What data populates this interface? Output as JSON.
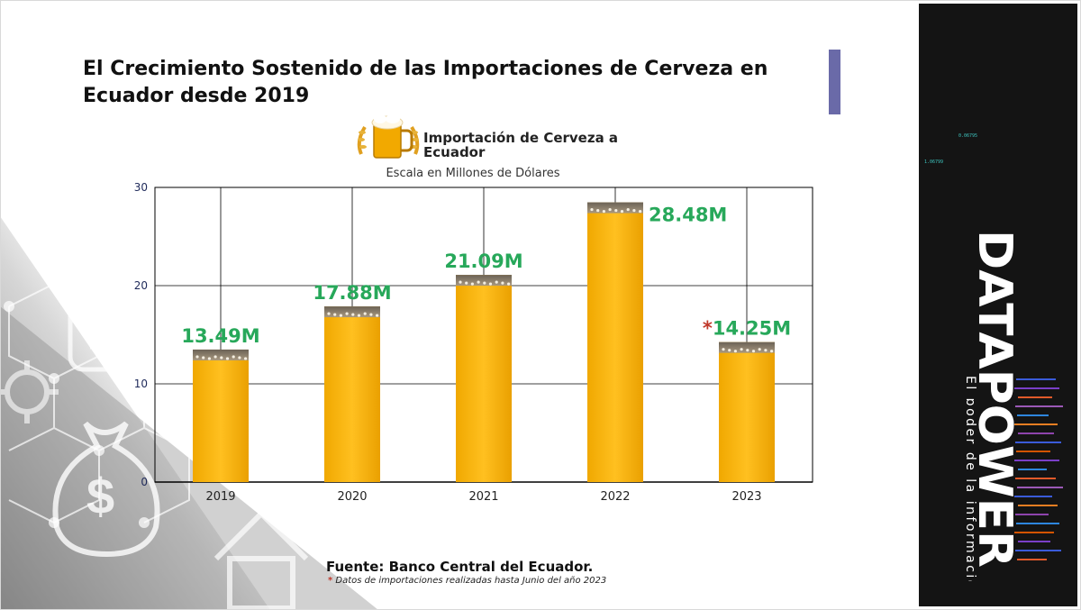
{
  "slide": {
    "title": "El Crecimiento Sostenido de las Importaciones de Cerveza en Ecuador desde 2019",
    "source": "Fuente: Banco Central del Ecuador.",
    "footnote_mark": "*",
    "footnote": "Datos de importaciones realizadas hasta Junio del año 2023"
  },
  "chart_data": {
    "type": "bar",
    "title": "Importación de Cerveza a Ecuador",
    "subtitle": "Escala en Millones de Dólares",
    "categories": [
      "2019",
      "2020",
      "2021",
      "2022",
      "2023"
    ],
    "values": [
      13.49,
      17.88,
      21.09,
      28.48,
      14.25
    ],
    "data_labels": [
      "13.49M",
      "17.88M",
      "21.09M",
      "28.48M",
      "14.25M"
    ],
    "label_marks": [
      "",
      "",
      "",
      "",
      "*"
    ],
    "xlabel": "",
    "ylabel": "",
    "ylim": [
      0,
      30
    ],
    "yticks": [
      0,
      10,
      20,
      30
    ],
    "grid": true,
    "legend": "none"
  },
  "brand": {
    "name": "DATAPOWER",
    "tagline": "El poder de la información",
    "tiny_numbers": [
      "0.06795",
      "1.06799"
    ]
  },
  "colors": {
    "accent_bar": "#6a6aa8",
    "data_label": "#27a85a",
    "footnote_mark": "#c0392b",
    "beer": "#f5b000",
    "foam": "#8a7a60",
    "panel": "#141414"
  },
  "icons": [
    "beer-mug-icon",
    "moneybag-icon",
    "gear-icon",
    "smart-home-icon",
    "phone-icon"
  ]
}
